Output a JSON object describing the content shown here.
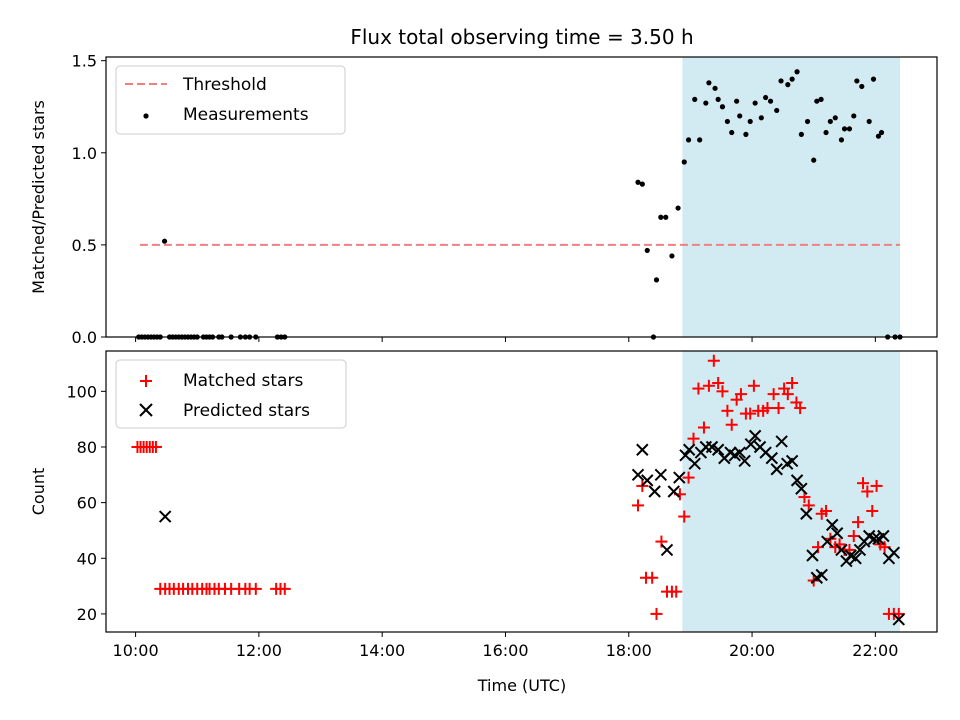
{
  "chart_data": {
    "title": "Flux total observing time = 3.50 h",
    "xlabel": "Time (UTC)",
    "x_ticks": [
      10,
      12,
      14,
      16,
      18,
      20,
      22
    ],
    "x_tick_labels": [
      "10:00",
      "12:00",
      "14:00",
      "16:00",
      "18:00",
      "20:00",
      "22:00"
    ],
    "xlim": [
      9.52,
      23.0
    ],
    "shaded_interval": [
      18.87,
      22.4
    ],
    "colors": {
      "threshold": "#f08080",
      "measurements": "#000000",
      "matched": "#ff0000",
      "predicted": "#000000",
      "shade": "#add8e6"
    },
    "panels": [
      {
        "type": "scatter",
        "ylabel": "Matched/Predicted stars",
        "ylim": [
          0.0,
          1.52
        ],
        "y_ticks": [
          0.0,
          0.5,
          1.0,
          1.5
        ],
        "y_tick_labels": [
          "0.0",
          "0.5",
          "1.0",
          "1.5"
        ],
        "legend": [
          "Threshold",
          "Measurements"
        ],
        "legend_position": "upper-left",
        "threshold": {
          "value": 0.5,
          "x": [
            10.07,
            22.4
          ]
        },
        "series": [
          {
            "name": "Measurements",
            "x": [
              10.05,
              10.1,
              10.15,
              10.2,
              10.25,
              10.3,
              10.35,
              10.4,
              10.47,
              10.55,
              10.6,
              10.65,
              10.7,
              10.75,
              10.8,
              10.85,
              10.9,
              10.95,
              11.0,
              11.1,
              11.15,
              11.2,
              11.25,
              11.35,
              11.4,
              11.55,
              11.7,
              11.78,
              11.85,
              11.95,
              12.3,
              12.36,
              12.42,
              18.15,
              18.22,
              18.3,
              18.4,
              18.45,
              18.52,
              18.6,
              18.7,
              18.8,
              18.9,
              18.97,
              19.07,
              19.15,
              19.25,
              19.3,
              19.4,
              19.45,
              19.52,
              19.6,
              19.67,
              19.75,
              19.8,
              19.9,
              19.97,
              20.05,
              20.15,
              20.22,
              20.3,
              20.4,
              20.47,
              20.58,
              20.65,
              20.73,
              20.8,
              20.9,
              21.0,
              21.05,
              21.12,
              21.2,
              21.27,
              21.35,
              21.45,
              21.5,
              21.58,
              21.65,
              21.7,
              21.78,
              21.9,
              21.97,
              22.05,
              22.1,
              22.2,
              22.32,
              22.4
            ],
            "y": [
              0,
              0,
              0,
              0,
              0,
              0,
              0,
              0,
              0.52,
              0,
              0,
              0,
              0,
              0,
              0,
              0,
              0,
              0,
              0,
              0,
              0,
              0,
              0,
              0,
              0,
              0,
              0,
              0,
              0,
              0,
              0,
              0,
              0,
              0.84,
              0.83,
              0.47,
              0,
              0.31,
              0.65,
              0.65,
              0.44,
              0.7,
              0.95,
              1.07,
              1.29,
              1.07,
              1.27,
              1.38,
              1.35,
              1.29,
              1.25,
              1.17,
              1.11,
              1.28,
              1.2,
              1.1,
              1.17,
              1.27,
              1.19,
              1.3,
              1.28,
              1.23,
              1.39,
              1.37,
              1.4,
              1.44,
              1.1,
              1.17,
              0.96,
              1.28,
              1.29,
              1.11,
              1.17,
              1.19,
              1.07,
              1.13,
              1.13,
              1.2,
              1.39,
              1.36,
              1.17,
              1.4,
              1.09,
              1.11,
              0,
              0,
              0
            ]
          }
        ]
      },
      {
        "type": "scatter",
        "ylabel": "Count",
        "ylim": [
          13.5,
          114.5
        ],
        "y_ticks": [
          20,
          40,
          60,
          80,
          100
        ],
        "y_tick_labels": [
          "20",
          "40",
          "60",
          "80",
          "100"
        ],
        "legend": [
          "Matched stars",
          "Predicted stars"
        ],
        "legend_position": "upper-left",
        "series": [
          {
            "name": "Matched stars",
            "marker": "plus",
            "x": [
              10.03,
              10.08,
              10.13,
              10.18,
              10.23,
              10.28,
              10.33,
              10.4,
              10.48,
              10.55,
              10.62,
              10.7,
              10.77,
              10.85,
              10.92,
              11.0,
              11.08,
              11.15,
              11.2,
              11.28,
              11.35,
              11.45,
              11.55,
              11.68,
              11.78,
              11.85,
              11.95,
              12.28,
              12.35,
              12.42,
              18.15,
              18.22,
              18.28,
              18.38,
              18.45,
              18.53,
              18.62,
              18.7,
              18.77,
              18.83,
              18.9,
              18.97,
              19.05,
              19.13,
              19.22,
              19.3,
              19.38,
              19.45,
              19.52,
              19.6,
              19.67,
              19.75,
              19.82,
              19.9,
              19.97,
              20.03,
              20.1,
              20.18,
              20.25,
              20.35,
              20.43,
              20.52,
              20.58,
              20.65,
              20.72,
              20.78,
              20.85,
              20.92,
              21.0,
              21.07,
              21.13,
              21.2,
              21.27,
              21.35,
              21.42,
              21.5,
              21.58,
              21.65,
              21.72,
              21.8,
              21.87,
              21.95,
              22.02,
              22.08,
              22.15,
              22.22,
              22.3,
              22.38
            ],
            "y": [
              80,
              80,
              80,
              80,
              80,
              80,
              80,
              29,
              29,
              29,
              29,
              29,
              29,
              29,
              29,
              29,
              29,
              29,
              29,
              29,
              29,
              29,
              29,
              29,
              29,
              29,
              29,
              29,
              29,
              29,
              59,
              66,
              33,
              33,
              20,
              46,
              28,
              28,
              28,
              63,
              55,
              69,
              83,
              101,
              87,
              102,
              111,
              103,
              100,
              93,
              88,
              97,
              99,
              92,
              92,
              102,
              93,
              93,
              94,
              99,
              94,
              101,
              99,
              103,
              96,
              94,
              62,
              59,
              32,
              44,
              56,
              57,
              47,
              44,
              45,
              43,
              43,
              48,
              53,
              67,
              64,
              57,
              66,
              45,
              44,
              20,
              20,
              20
            ]
          },
          {
            "name": "Predicted stars",
            "marker": "x",
            "x": [
              10.48,
              18.15,
              18.22,
              18.3,
              18.42,
              18.52,
              18.62,
              18.73,
              18.82,
              18.92,
              18.98,
              19.07,
              19.17,
              19.25,
              19.35,
              19.45,
              19.55,
              19.65,
              19.72,
              19.8,
              19.88,
              19.98,
              20.05,
              20.13,
              20.22,
              20.32,
              20.4,
              20.48,
              20.57,
              20.65,
              20.73,
              20.8,
              20.88,
              20.98,
              21.05,
              21.13,
              21.22,
              21.3,
              21.38,
              21.45,
              21.53,
              21.6,
              21.68,
              21.75,
              21.82,
              21.9,
              21.98,
              22.05,
              22.13,
              22.22,
              22.3,
              22.38
            ],
            "y": [
              55,
              70,
              79,
              68,
              64,
              70,
              43,
              64,
              69,
              77,
              79,
              74,
              78,
              80,
              80,
              79,
              76,
              78,
              77,
              78,
              75,
              81,
              84,
              80,
              78,
              76,
              72,
              82,
              74,
              75,
              68,
              65,
              56,
              41,
              33,
              34,
              46,
              52,
              49,
              43,
              39,
              41,
              40,
              43,
              46,
              48,
              47,
              47,
              48,
              40,
              42,
              18
            ]
          }
        ]
      }
    ]
  }
}
